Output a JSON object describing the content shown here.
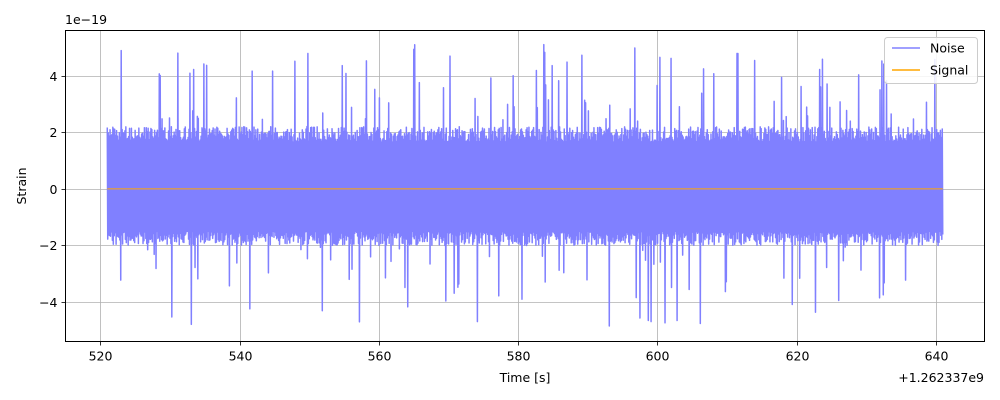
{
  "chart_data": {
    "type": "line",
    "title": "",
    "xlabel": "Time [s]",
    "ylabel": "Strain",
    "x_offset_label": "+1.262337e9",
    "y_exponent_label": "1e−19",
    "xlim": [
      515,
      647
    ],
    "ylim": [
      -5.4,
      5.6
    ],
    "x_ticks": [
      520,
      540,
      560,
      580,
      600,
      620,
      640
    ],
    "x_tick_labels": [
      "520",
      "540",
      "560",
      "580",
      "600",
      "620",
      "640"
    ],
    "y_ticks": [
      -4,
      -2,
      0,
      2,
      4
    ],
    "y_tick_labels": [
      "−4",
      "−2",
      "0",
      "2",
      "4"
    ],
    "grid": true,
    "legend_position": "top-right",
    "series": [
      {
        "name": "Noise",
        "color": "#8080ff",
        "x_range": [
          521,
          641
        ],
        "typical_envelope": [
          -2.0,
          2.2
        ],
        "max": 5.1,
        "min": -4.85
      },
      {
        "name": "Signal",
        "color": "#ffa500",
        "x": [
          521,
          641
        ],
        "y": [
          0,
          0
        ]
      }
    ]
  }
}
